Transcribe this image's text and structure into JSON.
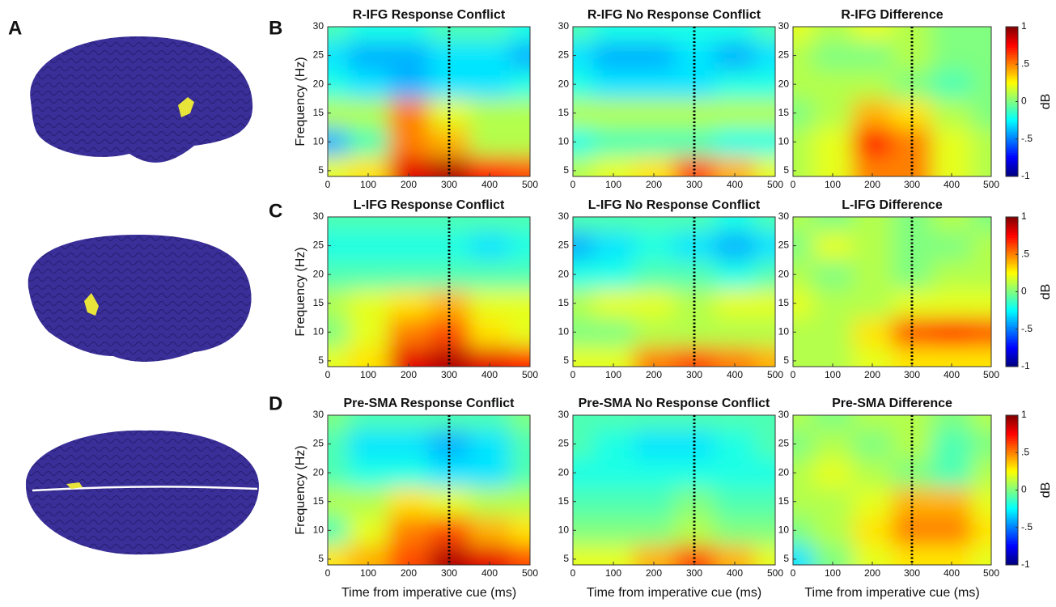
{
  "panel_labels": [
    "A",
    "B",
    "C",
    "D"
  ],
  "chart_data": [
    {
      "type": "heatmap",
      "title": "R-IFG Response Conflict",
      "ylabel": "Frequency (Hz)",
      "x": [
        0,
        100,
        200,
        300,
        400,
        500
      ],
      "y": [
        5,
        10,
        15,
        20,
        25,
        30
      ],
      "z": [
        [
          0.2,
          0.3,
          0.8,
          0.9,
          0.7,
          0.6
        ],
        [
          -0.4,
          -0.1,
          0.5,
          0.4,
          0.1,
          0.1
        ],
        [
          0.1,
          0.1,
          0.5,
          0.2,
          0.1,
          0.1
        ],
        [
          -0.2,
          -0.3,
          -0.4,
          -0.3,
          -0.3,
          -0.2
        ],
        [
          -0.3,
          -0.4,
          -0.4,
          -0.3,
          -0.3,
          -0.4
        ],
        [
          -0.1,
          -0.2,
          -0.2,
          -0.1,
          -0.1,
          -0.2
        ]
      ],
      "xlim": [
        0,
        500
      ],
      "xticks": [
        0,
        100,
        200,
        300,
        400,
        500
      ],
      "ylim": [
        4,
        30
      ],
      "yticks": [
        5,
        10,
        15,
        20,
        25,
        30
      ],
      "zlim": [
        -1,
        1
      ],
      "vline": 300
    },
    {
      "type": "heatmap",
      "title": "R-IFG No Response Conflict",
      "x": [
        0,
        100,
        200,
        300,
        400,
        500
      ],
      "y": [
        5,
        10,
        15,
        20,
        25,
        30
      ],
      "z": [
        [
          0.1,
          0.2,
          0.3,
          0.6,
          0.4,
          0.2
        ],
        [
          -0.2,
          -0.1,
          -0.1,
          -0.1,
          -0.2,
          -0.2
        ],
        [
          0.1,
          0.1,
          0.1,
          0.1,
          0.1,
          0.1
        ],
        [
          -0.2,
          -0.3,
          -0.3,
          -0.3,
          -0.2,
          -0.2
        ],
        [
          -0.3,
          -0.4,
          -0.4,
          -0.3,
          -0.4,
          -0.3
        ],
        [
          -0.1,
          -0.2,
          -0.2,
          -0.2,
          -0.2,
          -0.1
        ]
      ],
      "xlim": [
        0,
        500
      ],
      "xticks": [
        0,
        100,
        200,
        300,
        400,
        500
      ],
      "ylim": [
        4,
        30
      ],
      "yticks": [
        5,
        10,
        15,
        20,
        25,
        30
      ],
      "zlim": [
        -1,
        1
      ],
      "vline": 300
    },
    {
      "type": "heatmap",
      "title": "R-IFG Difference",
      "x": [
        0,
        100,
        200,
        300,
        400,
        500
      ],
      "y": [
        5,
        10,
        15,
        20,
        25,
        30
      ],
      "z": [
        [
          0.1,
          0.2,
          0.5,
          0.5,
          0.2,
          0.1
        ],
        [
          0.1,
          0.2,
          0.7,
          0.5,
          0.2,
          0.1
        ],
        [
          0.0,
          0.1,
          0.4,
          0.3,
          0.1,
          0.0
        ],
        [
          0.1,
          0.1,
          0.1,
          0.0,
          -0.1,
          0.0
        ],
        [
          0.1,
          0.0,
          0.0,
          0.1,
          0.0,
          0.0
        ],
        [
          0.2,
          0.1,
          0.2,
          0.1,
          0.0,
          0.0
        ]
      ],
      "xlim": [
        0,
        500
      ],
      "xticks": [
        0,
        100,
        200,
        300,
        400,
        500
      ],
      "ylim": [
        4,
        30
      ],
      "yticks": [
        5,
        10,
        15,
        20,
        25,
        30
      ],
      "zlim": [
        -1,
        1
      ],
      "vline": 300,
      "colorbar": {
        "label": "dB",
        "ticks": [
          1,
          {
            "value": 0.5,
            "label": ".5"
          },
          0,
          {
            "value": -0.5,
            "label": "-.5"
          },
          -1
        ]
      }
    },
    {
      "type": "heatmap",
      "title": "L-IFG Response Conflict",
      "ylabel": "Frequency (Hz)",
      "x": [
        0,
        100,
        200,
        300,
        400,
        500
      ],
      "y": [
        5,
        10,
        15,
        20,
        25,
        30
      ],
      "z": [
        [
          0.2,
          0.3,
          0.8,
          0.9,
          0.8,
          0.7
        ],
        [
          0.0,
          0.2,
          0.5,
          0.6,
          0.3,
          0.2
        ],
        [
          0.1,
          0.2,
          0.3,
          0.4,
          0.2,
          0.2
        ],
        [
          -0.1,
          -0.1,
          -0.1,
          -0.1,
          -0.1,
          -0.1
        ],
        [
          -0.2,
          -0.2,
          -0.2,
          -0.2,
          -0.3,
          -0.2
        ],
        [
          -0.1,
          -0.1,
          -0.1,
          -0.1,
          -0.1,
          -0.1
        ]
      ],
      "xlim": [
        0,
        500
      ],
      "xticks": [
        0,
        100,
        200,
        300,
        400,
        500
      ],
      "ylim": [
        4,
        30
      ],
      "yticks": [
        5,
        10,
        15,
        20,
        25,
        30
      ],
      "zlim": [
        -1,
        1
      ],
      "vline": 300
    },
    {
      "type": "heatmap",
      "title": "L-IFG No Response Conflict",
      "x": [
        0,
        100,
        200,
        300,
        400,
        500
      ],
      "y": [
        5,
        10,
        15,
        20,
        25,
        30
      ],
      "z": [
        [
          0.2,
          0.2,
          0.5,
          0.6,
          0.5,
          0.4
        ],
        [
          0.0,
          0.0,
          0.1,
          0.1,
          0.1,
          0.1
        ],
        [
          0.1,
          0.2,
          0.2,
          0.1,
          0.2,
          0.2
        ],
        [
          -0.2,
          -0.2,
          -0.1,
          -0.1,
          -0.2,
          -0.1
        ],
        [
          -0.4,
          -0.3,
          -0.2,
          -0.3,
          -0.4,
          -0.3
        ],
        [
          -0.1,
          -0.1,
          -0.1,
          -0.1,
          -0.2,
          -0.1
        ]
      ],
      "xlim": [
        0,
        500
      ],
      "xticks": [
        0,
        100,
        200,
        300,
        400,
        500
      ],
      "ylim": [
        4,
        30
      ],
      "yticks": [
        5,
        10,
        15,
        20,
        25,
        30
      ],
      "zlim": [
        -1,
        1
      ],
      "vline": 300
    },
    {
      "type": "heatmap",
      "title": "L-IFG Difference",
      "x": [
        0,
        100,
        200,
        300,
        400,
        500
      ],
      "y": [
        5,
        10,
        15,
        20,
        25,
        30
      ],
      "z": [
        [
          0.1,
          0.1,
          0.2,
          0.3,
          0.3,
          0.3
        ],
        [
          0.1,
          0.1,
          0.3,
          0.6,
          0.7,
          0.6
        ],
        [
          0.2,
          0.1,
          0.1,
          0.2,
          0.2,
          0.2
        ],
        [
          0.1,
          0.0,
          0.1,
          0.0,
          0.1,
          0.1
        ],
        [
          0.0,
          0.2,
          0.1,
          0.0,
          0.0,
          0.1
        ],
        [
          0.1,
          0.0,
          0.1,
          0.0,
          0.1,
          0.0
        ]
      ],
      "xlim": [
        0,
        500
      ],
      "xticks": [
        0,
        100,
        200,
        300,
        400,
        500
      ],
      "ylim": [
        4,
        30
      ],
      "yticks": [
        5,
        10,
        15,
        20,
        25,
        30
      ],
      "zlim": [
        -1,
        1
      ],
      "vline": 300,
      "colorbar": {
        "label": "dB",
        "ticks": [
          1,
          {
            "value": 0.5,
            "label": ".5"
          },
          0,
          {
            "value": -0.5,
            "label": "-.5"
          },
          -1
        ]
      }
    },
    {
      "type": "heatmap",
      "title": "Pre-SMA Response Conflict",
      "ylabel": "Frequency (Hz)",
      "xlabel": "Time from imperative cue (ms)",
      "x": [
        0,
        100,
        200,
        300,
        400,
        500
      ],
      "y": [
        5,
        10,
        15,
        20,
        25,
        30
      ],
      "z": [
        [
          0.3,
          0.4,
          0.6,
          0.9,
          0.8,
          0.6
        ],
        [
          -0.1,
          0.2,
          0.5,
          0.6,
          0.4,
          0.3
        ],
        [
          0.1,
          0.1,
          0.3,
          0.2,
          0.1,
          0.1
        ],
        [
          -0.1,
          -0.2,
          -0.2,
          -0.3,
          -0.3,
          -0.1
        ],
        [
          -0.1,
          -0.3,
          -0.3,
          -0.4,
          -0.3,
          -0.1
        ],
        [
          0.0,
          -0.1,
          -0.1,
          -0.1,
          -0.1,
          0.0
        ]
      ],
      "xlim": [
        0,
        500
      ],
      "xticks": [
        0,
        100,
        200,
        300,
        400,
        500
      ],
      "ylim": [
        4,
        30
      ],
      "yticks": [
        5,
        10,
        15,
        20,
        25,
        30
      ],
      "zlim": [
        -1,
        1
      ],
      "vline": 300
    },
    {
      "type": "heatmap",
      "title": "Pre-SMA No Response Conflict",
      "xlabel": "Time from imperative cue (ms)",
      "x": [
        0,
        100,
        200,
        300,
        400,
        500
      ],
      "y": [
        5,
        10,
        15,
        20,
        25,
        30
      ],
      "z": [
        [
          0.2,
          0.2,
          0.4,
          0.6,
          0.4,
          0.2
        ],
        [
          0.0,
          0.0,
          0.0,
          0.1,
          0.0,
          0.0
        ],
        [
          -0.1,
          -0.1,
          -0.1,
          0.0,
          -0.1,
          -0.1
        ],
        [
          -0.2,
          -0.2,
          -0.2,
          -0.2,
          -0.2,
          -0.2
        ],
        [
          -0.1,
          -0.2,
          -0.3,
          -0.3,
          -0.2,
          -0.1
        ],
        [
          -0.1,
          -0.1,
          -0.1,
          -0.1,
          -0.1,
          -0.1
        ]
      ],
      "xlim": [
        0,
        500
      ],
      "xticks": [
        0,
        100,
        200,
        300,
        400,
        500
      ],
      "ylim": [
        4,
        30
      ],
      "yticks": [
        5,
        10,
        15,
        20,
        25,
        30
      ],
      "zlim": [
        -1,
        1
      ],
      "vline": 300
    },
    {
      "type": "heatmap",
      "title": "Pre-SMA Difference",
      "xlabel": "Time from imperative cue (ms)",
      "x": [
        0,
        100,
        200,
        300,
        400,
        500
      ],
      "y": [
        5,
        10,
        15,
        20,
        25,
        30
      ],
      "z": [
        [
          -0.3,
          0.0,
          0.2,
          0.3,
          0.3,
          0.2
        ],
        [
          0.0,
          0.1,
          0.3,
          0.5,
          0.5,
          0.3
        ],
        [
          0.1,
          0.1,
          0.2,
          0.4,
          0.4,
          0.2
        ],
        [
          0.1,
          0.2,
          0.1,
          0.0,
          -0.1,
          0.1
        ],
        [
          0.0,
          0.1,
          0.0,
          0.1,
          -0.1,
          0.0
        ],
        [
          0.1,
          0.0,
          0.1,
          0.1,
          0.0,
          0.1
        ]
      ],
      "xlim": [
        0,
        500
      ],
      "xticks": [
        0,
        100,
        200,
        300,
        400,
        500
      ],
      "ylim": [
        4,
        30
      ],
      "yticks": [
        5,
        10,
        15,
        20,
        25,
        30
      ],
      "zlim": [
        -1,
        1
      ],
      "vline": 300,
      "colorbar": {
        "label": "dB",
        "ticks": [
          1,
          {
            "value": 0.5,
            "label": ".5"
          },
          0,
          {
            "value": -0.5,
            "label": "-.5"
          },
          -1
        ]
      }
    }
  ]
}
